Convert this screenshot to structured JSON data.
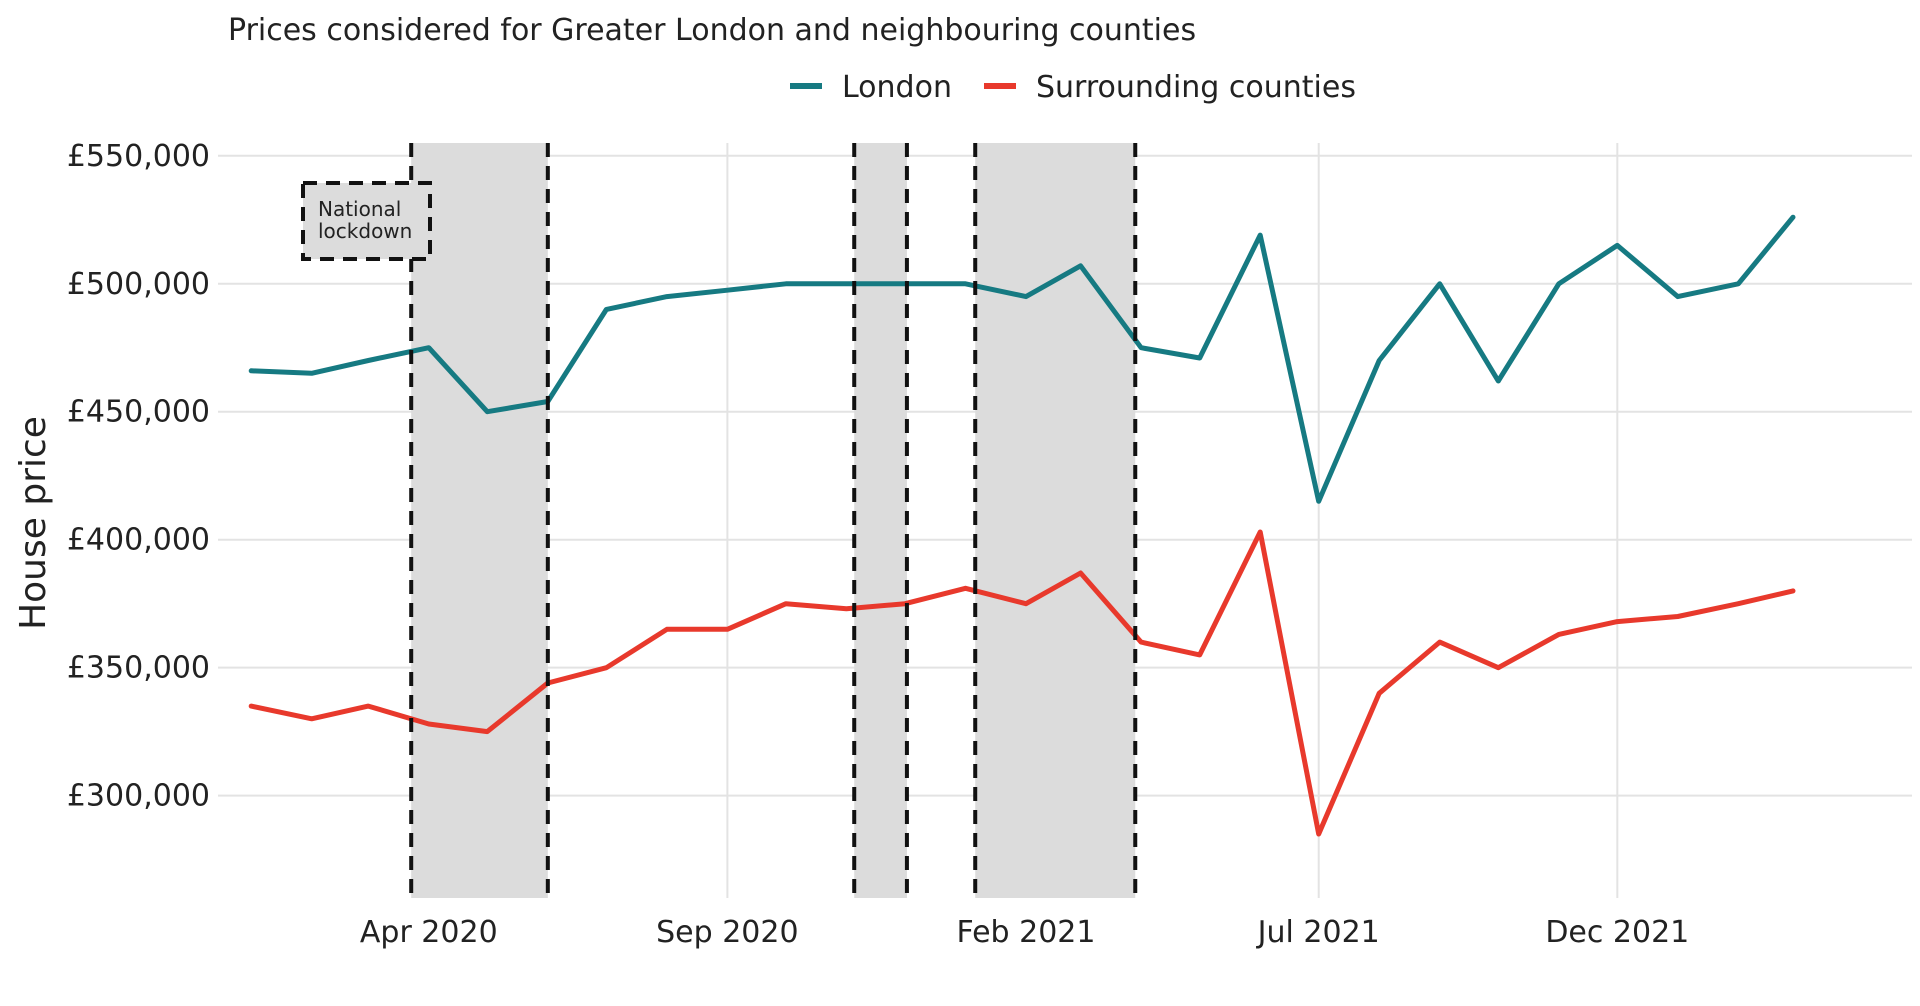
{
  "chart_data": {
    "type": "line",
    "subtitle": "Prices considered for Greater London and neighbouring counties",
    "ylabel": "House price",
    "xlabel": "",
    "x_range": [
      "2019-12-15",
      "2022-05-01"
    ],
    "ylim": [
      260000,
      555000
    ],
    "y_ticks": [
      {
        "value": 300000,
        "label": "£300,000"
      },
      {
        "value": 350000,
        "label": "£350,000"
      },
      {
        "value": 400000,
        "label": "£400,000"
      },
      {
        "value": 450000,
        "label": "£450,000"
      },
      {
        "value": 500000,
        "label": "£500,000"
      },
      {
        "value": 550000,
        "label": "£550,000"
      }
    ],
    "x_ticks": [
      {
        "date": "2020-04-01",
        "label": "Apr 2020"
      },
      {
        "date": "2020-09-01",
        "label": "Sep 2020"
      },
      {
        "date": "2021-02-01",
        "label": "Feb 2021"
      },
      {
        "date": "2021-07-01",
        "label": "Jul 2021"
      },
      {
        "date": "2021-12-01",
        "label": "Dec 2021"
      }
    ],
    "grid": true,
    "legend_position": "top",
    "x": [
      "2020-01-01",
      "2020-02-01",
      "2020-03-01",
      "2020-04-01",
      "2020-05-01",
      "2020-06-01",
      "2020-07-01",
      "2020-08-01",
      "2020-09-01",
      "2020-10-01",
      "2020-11-01",
      "2020-12-01",
      "2021-01-01",
      "2021-02-01",
      "2021-03-01",
      "2021-04-01",
      "2021-05-01",
      "2021-06-01",
      "2021-07-01",
      "2021-08-01",
      "2021-09-01",
      "2021-10-01",
      "2021-11-01",
      "2021-12-01",
      "2022-01-01",
      "2022-02-01",
      "2022-03-01"
    ],
    "series": [
      {
        "name": "London",
        "color": "#167a82",
        "values": [
          466000,
          465000,
          470000,
          475000,
          450000,
          454000,
          490000,
          495000,
          497500,
          500000,
          500000,
          500000,
          500000,
          495000,
          507000,
          475000,
          471000,
          519000,
          415000,
          470000,
          500000,
          462000,
          500000,
          515000,
          495000,
          500000,
          526000
        ]
      },
      {
        "name": "Surrounding counties",
        "color": "#e8392c",
        "values": [
          335000,
          330000,
          335000,
          328000,
          325000,
          344000,
          350000,
          365000,
          365000,
          375000,
          373000,
          375000,
          381000,
          375000,
          387000,
          360000,
          355000,
          403000,
          285000,
          340000,
          360000,
          350000,
          363000,
          368000,
          370000,
          375000,
          380000
        ]
      }
    ],
    "annotations": {
      "lockdown_label": "National lockdown",
      "lockdown_label_lines": [
        "National",
        "lockdown"
      ],
      "lockdown_periods": [
        {
          "start": "2020-03-23",
          "end": "2020-06-01"
        },
        {
          "start": "2020-11-05",
          "end": "2020-12-02"
        },
        {
          "start": "2021-01-06",
          "end": "2021-03-29"
        }
      ]
    }
  }
}
